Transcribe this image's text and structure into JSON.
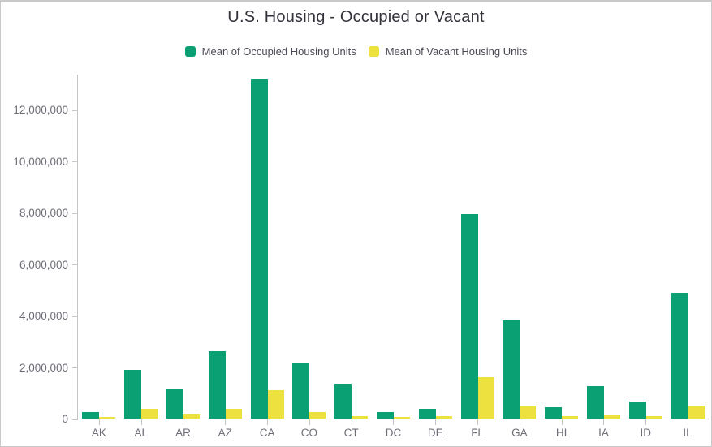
{
  "window": {
    "background": "#ffffff",
    "border_color": "#c9c9c9"
  },
  "styles": {
    "title_color": "#32323a",
    "axis_line_color": "#c5c5c5",
    "tick_label_color": "#6e6e78",
    "legend_label_color": "#4a4a55",
    "occupied_color": "#0aa074",
    "vacant_color": "#ece13e"
  },
  "chart_data": {
    "type": "bar",
    "title": "U.S. Housing - Occupied or Vacant",
    "xlabel": "",
    "ylabel": "",
    "grid": false,
    "legend_position": "top",
    "categories": [
      "AK",
      "AL",
      "AR",
      "AZ",
      "CA",
      "CO",
      "CT",
      "DC",
      "DE",
      "FL",
      "GA",
      "HI",
      "IA",
      "ID",
      "IL"
    ],
    "series": [
      {
        "name": "Mean of Occupied Housing Units",
        "color": "#0aa074",
        "values": [
          240000,
          1890000,
          1150000,
          2620000,
          13200000,
          2140000,
          1350000,
          260000,
          370000,
          7950000,
          3810000,
          440000,
          1260000,
          650000,
          4900000
        ]
      },
      {
        "name": "Mean of Vacant Housing Units",
        "color": "#ece13e",
        "values": [
          60000,
          370000,
          200000,
          390000,
          1090000,
          250000,
          110000,
          50000,
          80000,
          1620000,
          480000,
          80000,
          140000,
          100000,
          480000
        ]
      }
    ],
    "ylim": [
      0,
      13400000
    ],
    "yticks": [
      0,
      2000000,
      4000000,
      6000000,
      8000000,
      10000000,
      12000000
    ]
  }
}
